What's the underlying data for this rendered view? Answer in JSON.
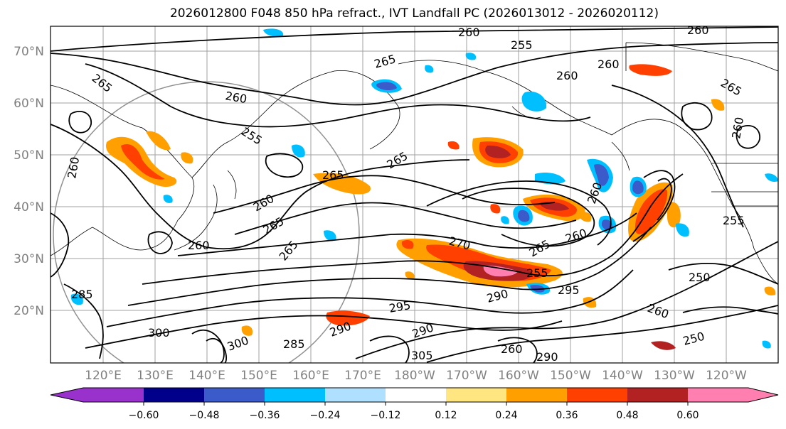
{
  "title": "2026012800 F048 850 hPa refract., IVT Landfall PC (2026013012 - 2026020112)",
  "lat_labels": [
    "70°N",
    "60°N",
    "50°N",
    "40°N",
    "30°N",
    "20°N"
  ],
  "lon_labels": [
    "120°E",
    "130°E",
    "140°E",
    "150°E",
    "160°E",
    "170°E",
    "180°W",
    "170°W",
    "160°W",
    "150°W",
    "140°W",
    "130°W",
    "120°W"
  ],
  "colorbar": {
    "ticks": [
      "−0.60",
      "−0.48",
      "−0.36",
      "−0.24",
      "−0.12",
      "0.12",
      "0.24",
      "0.36",
      "0.48",
      "0.60"
    ],
    "colors": [
      "#9932cc",
      "#00008b",
      "#3a5bc9",
      "#00bfff",
      "#b0e0ff",
      "#ffffff",
      "#ffe680",
      "#ffa000",
      "#ff4000",
      "#b22222",
      "#ff80b0"
    ]
  },
  "contour_labels": [
    "260",
    "265",
    "255",
    "260",
    "265",
    "260",
    "265",
    "255",
    "260",
    "265",
    "265",
    "260",
    "265",
    "270",
    "260",
    "265",
    "255",
    "260",
    "265",
    "260",
    "255",
    "250",
    "260",
    "290",
    "295",
    "295",
    "290",
    "300",
    "300",
    "305",
    "285",
    "290",
    "260",
    "290",
    "250",
    "260",
    "285",
    "260",
    "260"
  ]
}
